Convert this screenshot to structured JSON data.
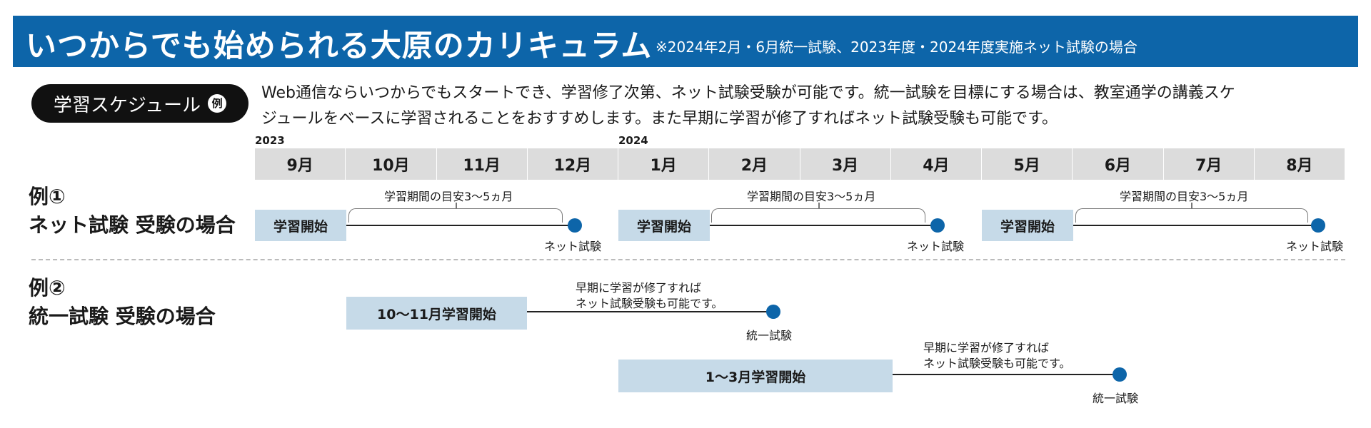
{
  "header": {
    "title": "いつからでも始められる大原のカリキュラム",
    "note": "※2024年2月・6月統一試験、2023年度・2024年度実施ネット試験の場合"
  },
  "schedule_pill": {
    "label": "学習スケジュール",
    "badge": "例"
  },
  "description": {
    "line1": "Web通信ならいつからでもスタートでき、学習修了次第、ネット試験受験が可能です。統一試験を目標にする場合は、教室通学の講義スケ",
    "line2": "ジュールをベースに学習されることをおすすめします。また早期に学習が修了すればネット試験受験も可能です。"
  },
  "years": [
    "2023",
    "2024"
  ],
  "months": [
    "9月",
    "10月",
    "11月",
    "12月",
    "1月",
    "2月",
    "3月",
    "4月",
    "5月",
    "6月",
    "7月",
    "8月"
  ],
  "example1": {
    "label_line1": "例①",
    "label_line2": "ネット試験 受験の場合",
    "tracks": [
      {
        "start_label": "学習開始",
        "period_label": "学習期間の目安3～5ヵ月",
        "end_label": "ネット試験"
      },
      {
        "start_label": "学習開始",
        "period_label": "学習期間の目安3～5ヵ月",
        "end_label": "ネット試験"
      },
      {
        "start_label": "学習開始",
        "period_label": "学習期間の目安3～5ヵ月",
        "end_label": "ネット試験"
      }
    ]
  },
  "example2": {
    "label_line1": "例②",
    "label_line2": "統一試験 受験の場合",
    "tracks": [
      {
        "start_label": "10～11月学習開始",
        "note_line1": "早期に学習が修了すれば",
        "note_line2": "ネット試験受験も可能です。",
        "end_label": "統一試験"
      },
      {
        "start_label": "1～3月学習開始",
        "note_line1": "早期に学習が修了すれば",
        "note_line2": "ネット試験受験も可能です。",
        "end_label": "統一試験"
      }
    ]
  },
  "colors": {
    "header_blue": "#0d65a9",
    "start_box": "#c6dae8",
    "month_bar": "#dcdcdc",
    "dot": "#0d65a9"
  }
}
